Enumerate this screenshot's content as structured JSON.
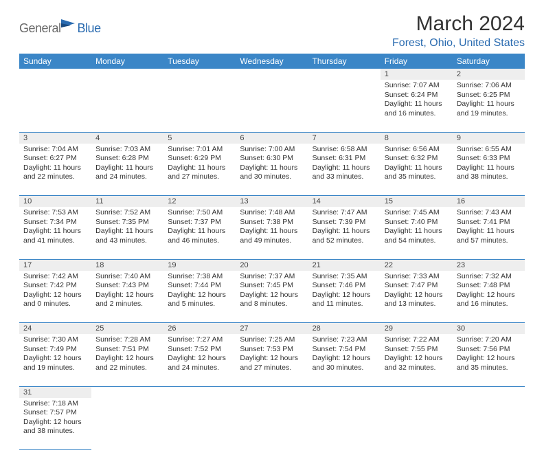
{
  "logo": {
    "part1": "General",
    "part2": "Blue"
  },
  "title": "March 2024",
  "subtitle": "Forest, Ohio, United States",
  "colors": {
    "header_bg": "#3b86c7",
    "header_fg": "#ffffff",
    "daynum_bg": "#eeeeee",
    "border": "#3b86c7",
    "brand_blue": "#2a6bb0",
    "brand_gray": "#6a6a6a"
  },
  "weekdays": [
    "Sunday",
    "Monday",
    "Tuesday",
    "Wednesday",
    "Thursday",
    "Friday",
    "Saturday"
  ],
  "days": {
    "1": {
      "sunrise": "7:07 AM",
      "sunset": "6:24 PM",
      "daylight": "11 hours and 16 minutes."
    },
    "2": {
      "sunrise": "7:06 AM",
      "sunset": "6:25 PM",
      "daylight": "11 hours and 19 minutes."
    },
    "3": {
      "sunrise": "7:04 AM",
      "sunset": "6:27 PM",
      "daylight": "11 hours and 22 minutes."
    },
    "4": {
      "sunrise": "7:03 AM",
      "sunset": "6:28 PM",
      "daylight": "11 hours and 24 minutes."
    },
    "5": {
      "sunrise": "7:01 AM",
      "sunset": "6:29 PM",
      "daylight": "11 hours and 27 minutes."
    },
    "6": {
      "sunrise": "7:00 AM",
      "sunset": "6:30 PM",
      "daylight": "11 hours and 30 minutes."
    },
    "7": {
      "sunrise": "6:58 AM",
      "sunset": "6:31 PM",
      "daylight": "11 hours and 33 minutes."
    },
    "8": {
      "sunrise": "6:56 AM",
      "sunset": "6:32 PM",
      "daylight": "11 hours and 35 minutes."
    },
    "9": {
      "sunrise": "6:55 AM",
      "sunset": "6:33 PM",
      "daylight": "11 hours and 38 minutes."
    },
    "10": {
      "sunrise": "7:53 AM",
      "sunset": "7:34 PM",
      "daylight": "11 hours and 41 minutes."
    },
    "11": {
      "sunrise": "7:52 AM",
      "sunset": "7:35 PM",
      "daylight": "11 hours and 43 minutes."
    },
    "12": {
      "sunrise": "7:50 AM",
      "sunset": "7:37 PM",
      "daylight": "11 hours and 46 minutes."
    },
    "13": {
      "sunrise": "7:48 AM",
      "sunset": "7:38 PM",
      "daylight": "11 hours and 49 minutes."
    },
    "14": {
      "sunrise": "7:47 AM",
      "sunset": "7:39 PM",
      "daylight": "11 hours and 52 minutes."
    },
    "15": {
      "sunrise": "7:45 AM",
      "sunset": "7:40 PM",
      "daylight": "11 hours and 54 minutes."
    },
    "16": {
      "sunrise": "7:43 AM",
      "sunset": "7:41 PM",
      "daylight": "11 hours and 57 minutes."
    },
    "17": {
      "sunrise": "7:42 AM",
      "sunset": "7:42 PM",
      "daylight": "12 hours and 0 minutes."
    },
    "18": {
      "sunrise": "7:40 AM",
      "sunset": "7:43 PM",
      "daylight": "12 hours and 2 minutes."
    },
    "19": {
      "sunrise": "7:38 AM",
      "sunset": "7:44 PM",
      "daylight": "12 hours and 5 minutes."
    },
    "20": {
      "sunrise": "7:37 AM",
      "sunset": "7:45 PM",
      "daylight": "12 hours and 8 minutes."
    },
    "21": {
      "sunrise": "7:35 AM",
      "sunset": "7:46 PM",
      "daylight": "12 hours and 11 minutes."
    },
    "22": {
      "sunrise": "7:33 AM",
      "sunset": "7:47 PM",
      "daylight": "12 hours and 13 minutes."
    },
    "23": {
      "sunrise": "7:32 AM",
      "sunset": "7:48 PM",
      "daylight": "12 hours and 16 minutes."
    },
    "24": {
      "sunrise": "7:30 AM",
      "sunset": "7:49 PM",
      "daylight": "12 hours and 19 minutes."
    },
    "25": {
      "sunrise": "7:28 AM",
      "sunset": "7:51 PM",
      "daylight": "12 hours and 22 minutes."
    },
    "26": {
      "sunrise": "7:27 AM",
      "sunset": "7:52 PM",
      "daylight": "12 hours and 24 minutes."
    },
    "27": {
      "sunrise": "7:25 AM",
      "sunset": "7:53 PM",
      "daylight": "12 hours and 27 minutes."
    },
    "28": {
      "sunrise": "7:23 AM",
      "sunset": "7:54 PM",
      "daylight": "12 hours and 30 minutes."
    },
    "29": {
      "sunrise": "7:22 AM",
      "sunset": "7:55 PM",
      "daylight": "12 hours and 32 minutes."
    },
    "30": {
      "sunrise": "7:20 AM",
      "sunset": "7:56 PM",
      "daylight": "12 hours and 35 minutes."
    },
    "31": {
      "sunrise": "7:18 AM",
      "sunset": "7:57 PM",
      "daylight": "12 hours and 38 minutes."
    }
  },
  "labels": {
    "sunrise": "Sunrise:",
    "sunset": "Sunset:",
    "daylight": "Daylight:"
  },
  "layout": {
    "first_weekday_index": 5,
    "num_days": 31,
    "cols": 7
  }
}
